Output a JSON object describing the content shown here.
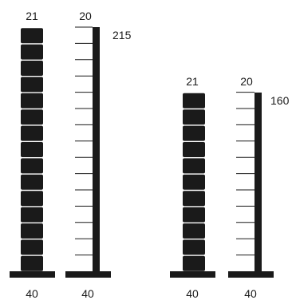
{
  "diagram": {
    "ink_color": "#1a1a1a",
    "towers": [
      {
        "blocks_count": 15,
        "top_labels": {
          "stack": "21",
          "ruler": "20"
        },
        "height_label": "215",
        "bottom_labels": {
          "stack_base": "40",
          "ruler_base": "40"
        }
      },
      {
        "blocks_count": 11,
        "top_labels": {
          "stack": "21",
          "ruler": "20"
        },
        "height_label": "160",
        "bottom_labels": {
          "stack_base": "40",
          "ruler_base": "40"
        }
      }
    ]
  }
}
